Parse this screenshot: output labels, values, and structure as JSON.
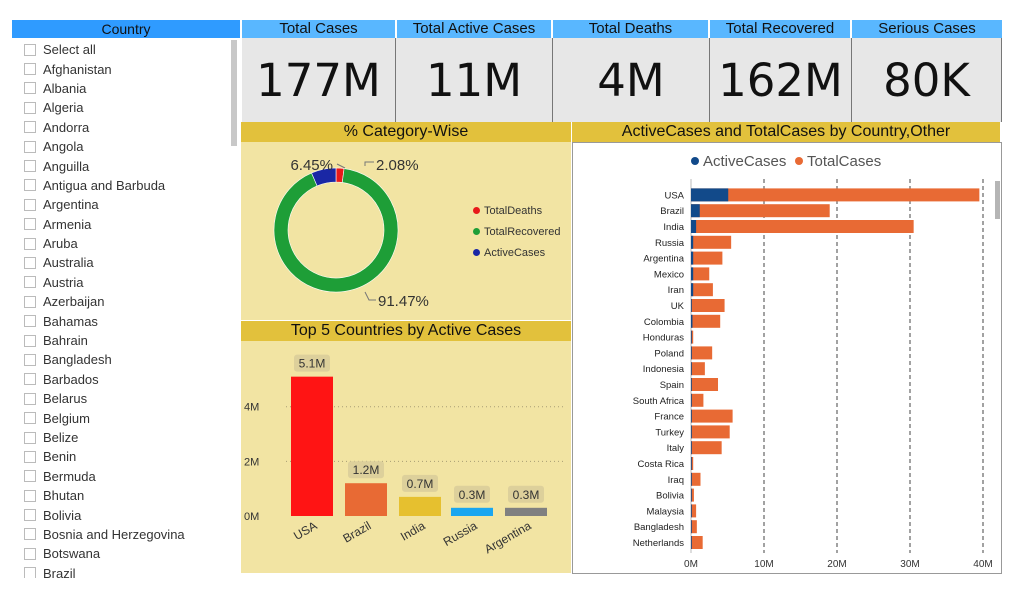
{
  "slicer": {
    "header": "Country",
    "items": [
      "Select all",
      "Afghanistan",
      "Albania",
      "Algeria",
      "Andorra",
      "Angola",
      "Anguilla",
      "Antigua and Barbuda",
      "Argentina",
      "Armenia",
      "Aruba",
      "Australia",
      "Austria",
      "Azerbaijan",
      "Bahamas",
      "Bahrain",
      "Bangladesh",
      "Barbados",
      "Belarus",
      "Belgium",
      "Belize",
      "Benin",
      "Bermuda",
      "Bhutan",
      "Bolivia",
      "Bosnia and Herzegovina",
      "Botswana",
      "Brazil"
    ]
  },
  "kpis": [
    {
      "title": "Total Cases",
      "value": "177M"
    },
    {
      "title": "Total Active Cases",
      "value": "11M"
    },
    {
      "title": "Total Deaths",
      "value": "4M"
    },
    {
      "title": "Total Recovered",
      "value": "162M"
    },
    {
      "title": "Serious Cases",
      "value": "80K"
    }
  ],
  "category_panel": {
    "title": "% Category-Wise",
    "legend": [
      "TotalDeaths",
      "TotalRecovered",
      "ActiveCases"
    ]
  },
  "top5_panel": {
    "title": "Top 5 Countries by Active Cases"
  },
  "country_panel": {
    "title": "ActiveCases and TotalCases by Country,Other"
  },
  "colors": {
    "deaths": "#e8191a",
    "recovered": "#1e9e37",
    "active": "#1a27a5",
    "bar_usa": "#ff1414",
    "bar_brazil": "#e86a34",
    "bar_india": "#e6c02f",
    "bar_russia": "#1aa6f0",
    "bar_argentina": "#808080",
    "series_active": "#124a8a",
    "series_total": "#e86a34"
  },
  "chart_data": [
    {
      "type": "pie",
      "labels": [
        "TotalDeaths",
        "TotalRecovered",
        "ActiveCases"
      ],
      "values": [
        2.08,
        91.47,
        6.45
      ],
      "data_labels": [
        "2.08%",
        "91.47%",
        "6.45%"
      ]
    },
    {
      "type": "bar",
      "categories": [
        "USA",
        "Brazil",
        "India",
        "Russia",
        "Argentina"
      ],
      "values": [
        5.1,
        1.2,
        0.7,
        0.3,
        0.3
      ],
      "data_labels": [
        "5.1M",
        "1.2M",
        "0.7M",
        "0.3M",
        "0.3M"
      ],
      "yticks": [
        "0M",
        "2M",
        "4M"
      ],
      "ylim": [
        0,
        5.6
      ]
    },
    {
      "type": "bar",
      "orientation": "horizontal",
      "legend": "top",
      "categories": [
        "USA",
        "Brazil",
        "India",
        "Russia",
        "Argentina",
        "Mexico",
        "Iran",
        "UK",
        "Colombia",
        "Honduras",
        "Poland",
        "Indonesia",
        "Spain",
        "South Africa",
        "France",
        "Turkey",
        "Italy",
        "Costa Rica",
        "Iraq",
        "Bolivia",
        "Malaysia",
        "Bangladesh",
        "Netherlands"
      ],
      "series": [
        {
          "name": "ActiveCases",
          "values": [
            5.1,
            1.2,
            0.7,
            0.3,
            0.3,
            0.3,
            0.3,
            0.1,
            0.2,
            0.05,
            0.1,
            0.1,
            0.1,
            0.1,
            0.1,
            0.1,
            0.1,
            0.05,
            0.1,
            0.05,
            0.1,
            0.05,
            0.1
          ]
        },
        {
          "name": "TotalCases",
          "values": [
            39.5,
            19.0,
            30.5,
            5.5,
            4.3,
            2.5,
            3.0,
            4.6,
            4.0,
            0.3,
            2.9,
            1.9,
            3.7,
            1.7,
            5.7,
            5.3,
            4.2,
            0.3,
            1.3,
            0.4,
            0.7,
            0.8,
            1.6
          ]
        }
      ],
      "xticks": [
        "0M",
        "10M",
        "20M",
        "30M",
        "40M"
      ],
      "xlim": [
        0,
        40
      ]
    }
  ]
}
